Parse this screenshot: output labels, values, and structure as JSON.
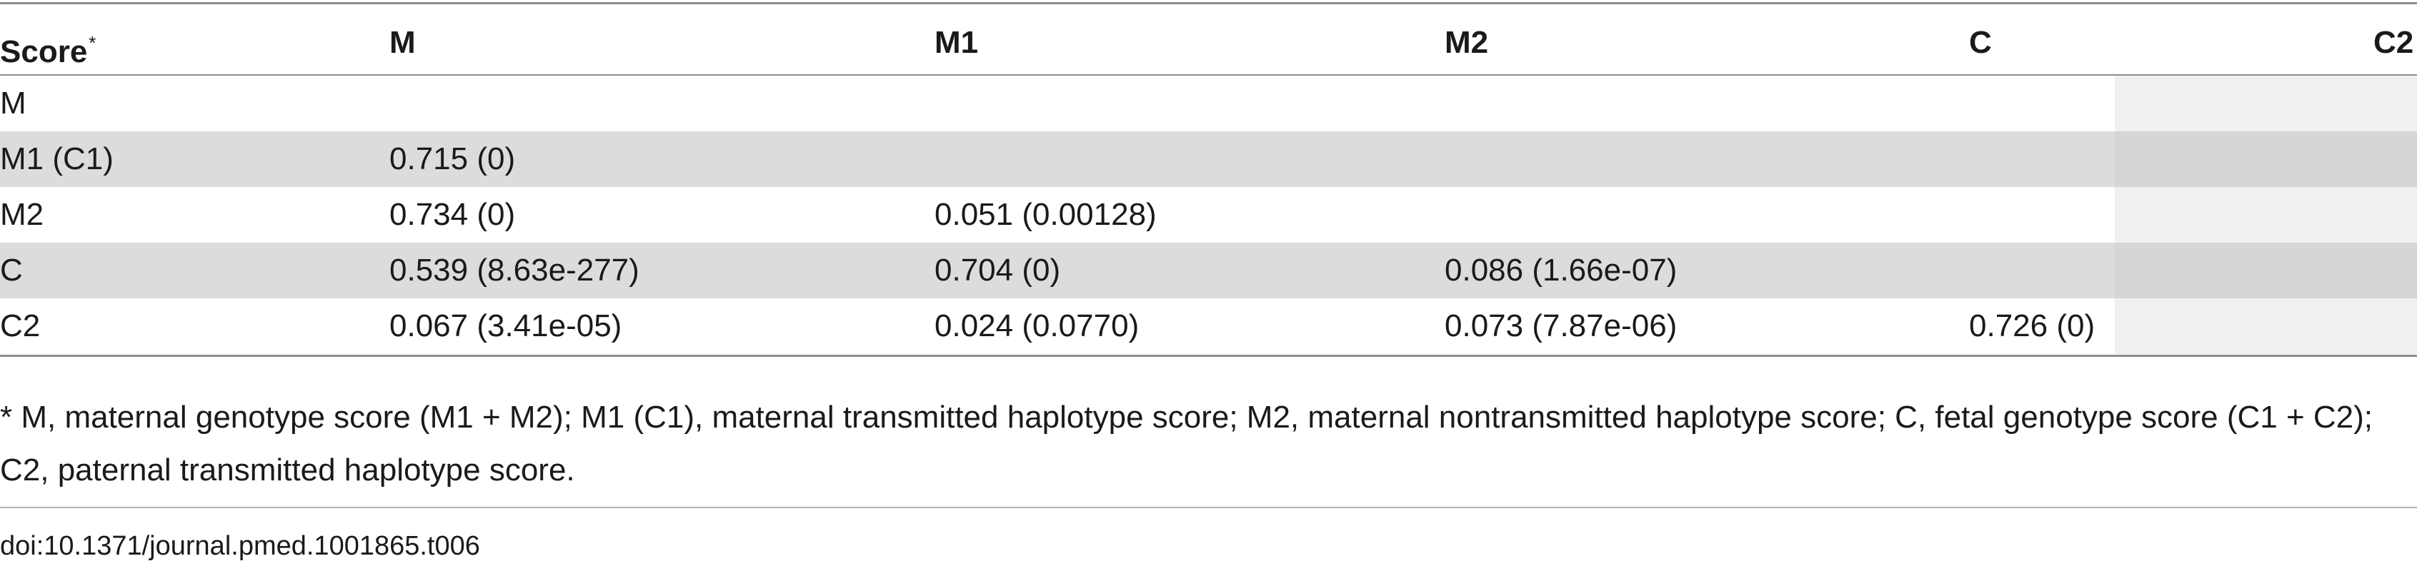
{
  "table": {
    "headers": [
      "Score",
      "M",
      "M1",
      "M2",
      "C",
      "C2"
    ],
    "header_marker": "*",
    "rows": [
      [
        "M",
        "",
        "",
        "",
        "",
        ""
      ],
      [
        "M1 (C1)",
        "0.715 (0)",
        "",
        "",
        "",
        ""
      ],
      [
        "M2",
        "0.734 (0)",
        "0.051 (0.00128)",
        "",
        "",
        ""
      ],
      [
        "C",
        "0.539 (8.63e-277)",
        "0.704 (0)",
        "0.086 (1.66e-07)",
        "",
        ""
      ],
      [
        "C2",
        "0.067 (3.41e-05)",
        "0.024 (0.0770)",
        "0.073 (7.87e-06)",
        "0.726 (0)",
        ""
      ]
    ]
  },
  "footnote": "* M, maternal genotype score (M1 + M2); M1 (C1), maternal transmitted haplotype score; M2, maternal nontransmitted haplotype score; C, fetal genotype score (C1 + C2); C2, paternal transmitted haplotype score.",
  "doi": "doi:10.1371/journal.pmed.1001865.t006"
}
